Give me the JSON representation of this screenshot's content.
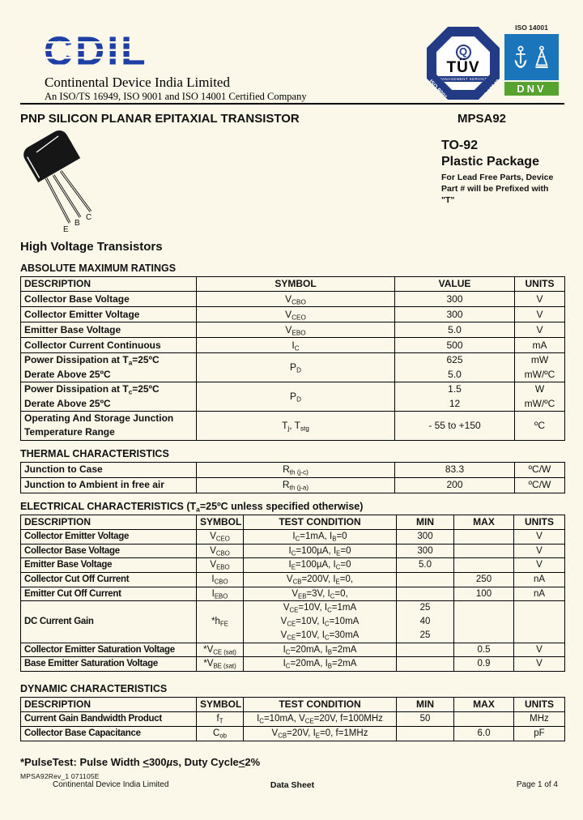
{
  "page": {
    "logo_text": "CDIL",
    "company": "Continental Device India Limited",
    "certification": "An ISO/TS 16949,  ISO 9001 and ISO 14001 Certified Company",
    "title": "PNP SILICON PLANAR EPITAXIAL TRANSISTOR",
    "part_number": "MPSA92",
    "family_heading": "High Voltage Transistors",
    "pins": [
      "E",
      "B",
      "C"
    ],
    "package": {
      "name": "TO-92",
      "type": "Plastic Package",
      "note_lines": [
        "For Lead Free Parts, Device",
        "Part # will be Prefixed with",
        "\"T\""
      ]
    },
    "footnote": [
      {
        "t": "*PulseTest: Pulse Width "
      },
      {
        "u": "<"
      },
      {
        "t": "300"
      },
      {
        "i": "µ"
      },
      {
        "t": "s, Duty Cycle"
      },
      {
        "u": "<"
      },
      {
        "t": "2%"
      }
    ],
    "rev": "MPSA92Rev_1 071105E",
    "footer": {
      "left": "Continental Device India Limited",
      "center": "Data Sheet",
      "right": "Page 1 of 4"
    }
  },
  "badges": {
    "tuv": {
      "q": "Q",
      "name": "TÜV",
      "subtitle": "MANAGEMENT SERVICE",
      "iso_left": "ISO 9001",
      "iso_right": "ISO/TS 16949"
    },
    "dnv": {
      "iso": "ISO 14001",
      "name": "DNV"
    }
  },
  "abs_max": {
    "heading": "ABSOLUTE MAXIMUM RATINGS",
    "headers": [
      "DESCRIPTION",
      "SYMBOL",
      "VALUE",
      "UNITS"
    ],
    "rows": [
      [
        "Collector Base Voltage",
        [
          {
            "t": "V"
          },
          {
            "sub": "CBO"
          }
        ],
        "300",
        "V"
      ],
      [
        "Collector Emitter Voltage",
        [
          {
            "t": "V"
          },
          {
            "sub": "CEO"
          }
        ],
        "300",
        "V"
      ],
      [
        "Emitter Base Voltage",
        [
          {
            "t": "V"
          },
          {
            "sub": "EBO"
          }
        ],
        "5.0",
        "V"
      ],
      [
        "Collector Current Continuous",
        [
          {
            "t": "I"
          },
          {
            "sub": "C"
          }
        ],
        "500",
        "mA"
      ],
      [
        [
          {
            "t": "Power Dissipation at T"
          },
          {
            "sub": "a"
          },
          {
            "t": "=25ºC"
          },
          {
            "br": true
          },
          {
            "t": "Derate Above 25ºC"
          }
        ],
        [
          {
            "t": "P"
          },
          {
            "sub": "D"
          }
        ],
        [
          {
            "t": "625"
          },
          {
            "br": true
          },
          {
            "t": "5.0"
          }
        ],
        [
          {
            "t": "mW"
          },
          {
            "br": true
          },
          {
            "t": "mW/ºC"
          }
        ]
      ],
      [
        [
          {
            "t": "Power Dissipation at T"
          },
          {
            "sub": "c"
          },
          {
            "t": "=25ºC"
          },
          {
            "br": true
          },
          {
            "t": "Derate Above 25ºC"
          }
        ],
        [
          {
            "t": "P"
          },
          {
            "sub": "D"
          }
        ],
        [
          {
            "t": "1.5"
          },
          {
            "br": true
          },
          {
            "t": "12"
          }
        ],
        [
          {
            "t": "W"
          },
          {
            "br": true
          },
          {
            "t": "mW/ºC"
          }
        ]
      ],
      [
        [
          {
            "t": "Operating And Storage Junction"
          },
          {
            "br": true
          },
          {
            "t": "Temperature Range"
          }
        ],
        [
          {
            "t": "T"
          },
          {
            "sub": "j"
          },
          {
            "t": ", T"
          },
          {
            "sub": "stg"
          }
        ],
        "- 55 to +150",
        "ºC"
      ]
    ]
  },
  "thermal": {
    "heading": "THERMAL CHARACTERISTICS",
    "rows": [
      [
        "Junction to Case",
        [
          {
            "t": "R"
          },
          {
            "sub": "th (j-c)"
          }
        ],
        "83.3",
        "ºC/W"
      ],
      [
        "Junction to Ambient in free air",
        [
          {
            "t": "R"
          },
          {
            "sub": "th (j-a)"
          }
        ],
        "200",
        "ºC/W"
      ]
    ]
  },
  "electrical": {
    "heading": [
      {
        "t": "ELECTRICAL CHARACTERISTICS (T"
      },
      {
        "sub": "a"
      },
      {
        "t": "=25ºC unless specified otherwise)"
      }
    ],
    "headers": [
      "DESCRIPTION",
      "SYMBOL",
      "TEST CONDITION",
      "MIN",
      "MAX",
      "UNITS"
    ],
    "rows": [
      [
        "Collector Emitter Voltage",
        [
          {
            "t": "V"
          },
          {
            "sub": "CEO"
          }
        ],
        [
          {
            "t": "I"
          },
          {
            "sub": "C"
          },
          {
            "t": "=1mA, I"
          },
          {
            "sub": "B"
          },
          {
            "t": "=0"
          }
        ],
        "300",
        "",
        "V"
      ],
      [
        "Collector Base Voltage",
        [
          {
            "t": "V"
          },
          {
            "sub": "CBO"
          }
        ],
        [
          {
            "t": "I"
          },
          {
            "sub": "C"
          },
          {
            "t": "=100µA, I"
          },
          {
            "sub": "E"
          },
          {
            "t": "=0"
          }
        ],
        "300",
        "",
        "V"
      ],
      [
        "Emitter Base Voltage",
        [
          {
            "t": "V"
          },
          {
            "sub": "EBO"
          }
        ],
        [
          {
            "t": "I"
          },
          {
            "sub": "E"
          },
          {
            "t": "=100µA, I"
          },
          {
            "sub": "C"
          },
          {
            "t": "=0"
          }
        ],
        "5.0",
        "",
        "V"
      ],
      [
        "Collector Cut Off Current",
        [
          {
            "t": "I"
          },
          {
            "sub": "CBO"
          }
        ],
        [
          {
            "t": "V"
          },
          {
            "sub": "CB"
          },
          {
            "t": "=200V, I"
          },
          {
            "sub": "E"
          },
          {
            "t": "=0,"
          }
        ],
        "",
        "250",
        "nA"
      ],
      [
        "Emitter Cut Off Current",
        [
          {
            "t": "I"
          },
          {
            "sub": "EBO"
          }
        ],
        [
          {
            "t": "V"
          },
          {
            "sub": "EB"
          },
          {
            "t": "=3V, I"
          },
          {
            "sub": "C"
          },
          {
            "t": "=0,"
          }
        ],
        "",
        "100",
        "nA"
      ],
      [
        "DC Current Gain",
        [
          {
            "t": "*h"
          },
          {
            "sub": "FE"
          }
        ],
        [
          {
            "t": "V"
          },
          {
            "sub": "CE"
          },
          {
            "t": "=10V, I"
          },
          {
            "sub": "C"
          },
          {
            "t": "=1mA"
          },
          {
            "br": true
          },
          {
            "t": "V"
          },
          {
            "sub": "CE"
          },
          {
            "t": "=10V, I"
          },
          {
            "sub": "C"
          },
          {
            "t": "=10mA"
          },
          {
            "br": true
          },
          {
            "t": "V"
          },
          {
            "sub": "CE"
          },
          {
            "t": "=10V, I"
          },
          {
            "sub": "C"
          },
          {
            "t": "=30mA"
          }
        ],
        [
          {
            "t": "25"
          },
          {
            "br": true
          },
          {
            "t": "40"
          },
          {
            "br": true
          },
          {
            "t": "25"
          }
        ],
        "",
        ""
      ],
      [
        "Collector Emitter Saturation Voltage",
        [
          {
            "t": "*V"
          },
          {
            "sub": "CE (sat)"
          }
        ],
        [
          {
            "t": "I"
          },
          {
            "sub": "C"
          },
          {
            "t": "=20mA, I"
          },
          {
            "sub": "B"
          },
          {
            "t": "=2mA"
          }
        ],
        "",
        "0.5",
        "V"
      ],
      [
        "Base Emitter Saturation Voltage",
        [
          {
            "t": "*V"
          },
          {
            "sub": "BE (sat)"
          }
        ],
        [
          {
            "t": "I"
          },
          {
            "sub": "C"
          },
          {
            "t": "=20mA, I"
          },
          {
            "sub": "B"
          },
          {
            "t": "=2mA"
          }
        ],
        "",
        "0.9",
        "V"
      ]
    ]
  },
  "dynamic": {
    "heading": "DYNAMIC CHARACTERISTICS",
    "headers": [
      "DESCRIPTION",
      "SYMBOL",
      "TEST CONDITION",
      "MIN",
      "MAX",
      "UNITS"
    ],
    "rows": [
      [
        "Current Gain Bandwidth Product",
        [
          {
            "t": "f"
          },
          {
            "sub": "T"
          }
        ],
        [
          {
            "t": "I"
          },
          {
            "sub": "C"
          },
          {
            "t": "=10mA, V"
          },
          {
            "sub": "CE"
          },
          {
            "t": "=20V, f=100MHz"
          }
        ],
        "50",
        "",
        "MHz"
      ],
      [
        "Collector Base Capacitance",
        [
          {
            "t": "C"
          },
          {
            "sub": "ob"
          }
        ],
        [
          {
            "t": "V"
          },
          {
            "sub": "CB"
          },
          {
            "t": "=20V, I"
          },
          {
            "sub": "E"
          },
          {
            "t": "=0, f=1MHz"
          }
        ],
        "",
        "6.0",
        "pF"
      ]
    ]
  }
}
